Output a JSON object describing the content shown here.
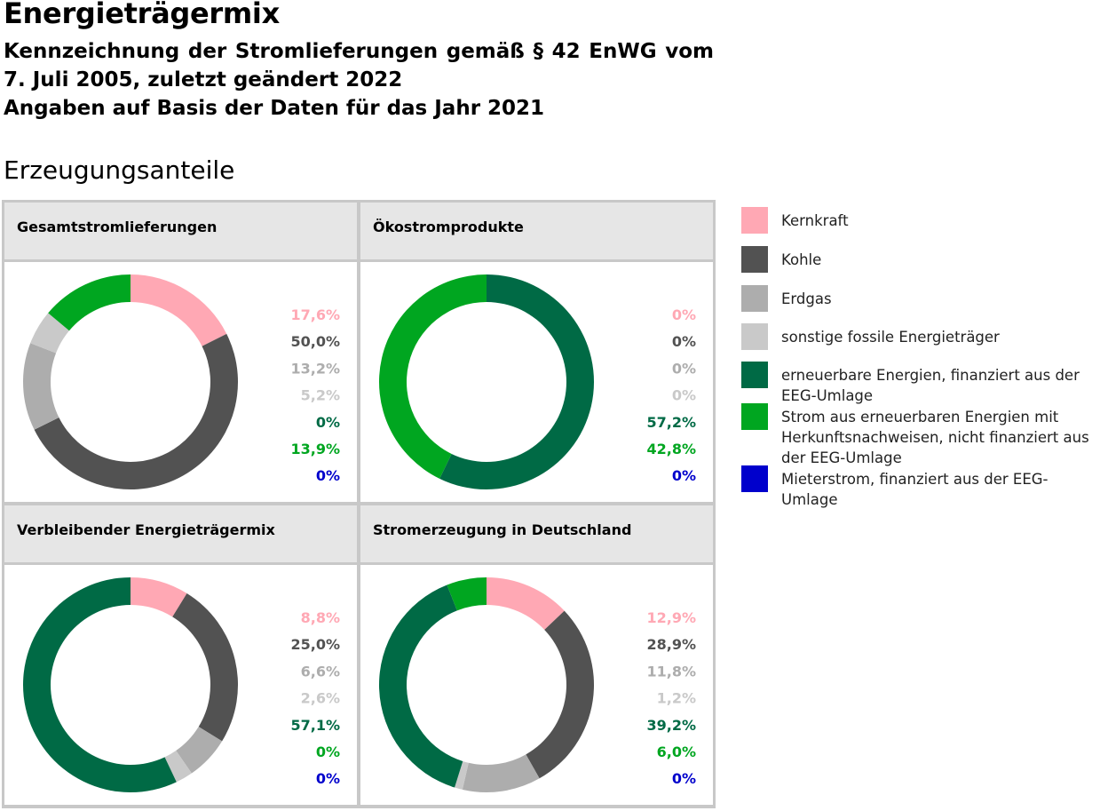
{
  "header": {
    "title": "Energieträgermix",
    "subtitle_line1": "Kennzeichnung der Stromlieferungen gemäß § 42 EnWG vom",
    "subtitle_line2": "7. Juli 2005, zuletzt geändert 2022",
    "subtitle_line3": "Angaben auf Basis der Daten für das Jahr 2021"
  },
  "section_title": "Erzeugungsanteile",
  "legend": [
    {
      "label": "Kernkraft",
      "color": "#ffa8b4"
    },
    {
      "label": "Kohle",
      "color": "#525252"
    },
    {
      "label": "Erdgas",
      "color": "#adadad"
    },
    {
      "label": "sonstige fossile Energieträger",
      "color": "#c9c9c9"
    },
    {
      "label": "erneuerbare Energien, finanziert aus der EEG-Umlage",
      "color": "#006a45"
    },
    {
      "label": "Strom aus erneuerbaren Energien mit Herkunftsnachweisen, nicht finanziert aus der EEG-Umlage",
      "color": "#00a620"
    },
    {
      "label": "Mieterstrom, finanziert aus der EEG-Umlage",
      "color": "#0000cc"
    }
  ],
  "chart_data": [
    {
      "type": "pie",
      "title": "Gesamtstromlieferungen",
      "values": [
        17.6,
        50.0,
        13.2,
        5.2,
        0,
        13.9,
        0
      ],
      "value_labels": [
        "17,6%",
        "50,0%",
        "13,2%",
        "5,2%",
        "0%",
        "13,9%",
        "0%"
      ]
    },
    {
      "type": "pie",
      "title": "Ökostromprodukte",
      "values": [
        0,
        0,
        0,
        0,
        57.2,
        42.8,
        0
      ],
      "value_labels": [
        "0%",
        "0%",
        "0%",
        "0%",
        "57,2%",
        "42,8%",
        "0%"
      ]
    },
    {
      "type": "pie",
      "title": "Verbleibender Energieträgermix",
      "values": [
        8.8,
        25.0,
        6.6,
        2.6,
        57.1,
        0,
        0
      ],
      "value_labels": [
        "8,8%",
        "25,0%",
        "6,6%",
        "2,6%",
        "57,1%",
        "0%",
        "0%"
      ]
    },
    {
      "type": "pie",
      "title": "Stromerzeugung in Deutschland",
      "values": [
        12.9,
        28.9,
        11.8,
        1.2,
        39.2,
        6.0,
        0
      ],
      "value_labels": [
        "12,9%",
        "28,9%",
        "11,8%",
        "1,2%",
        "39,2%",
        "6,0%",
        "0%"
      ]
    }
  ]
}
